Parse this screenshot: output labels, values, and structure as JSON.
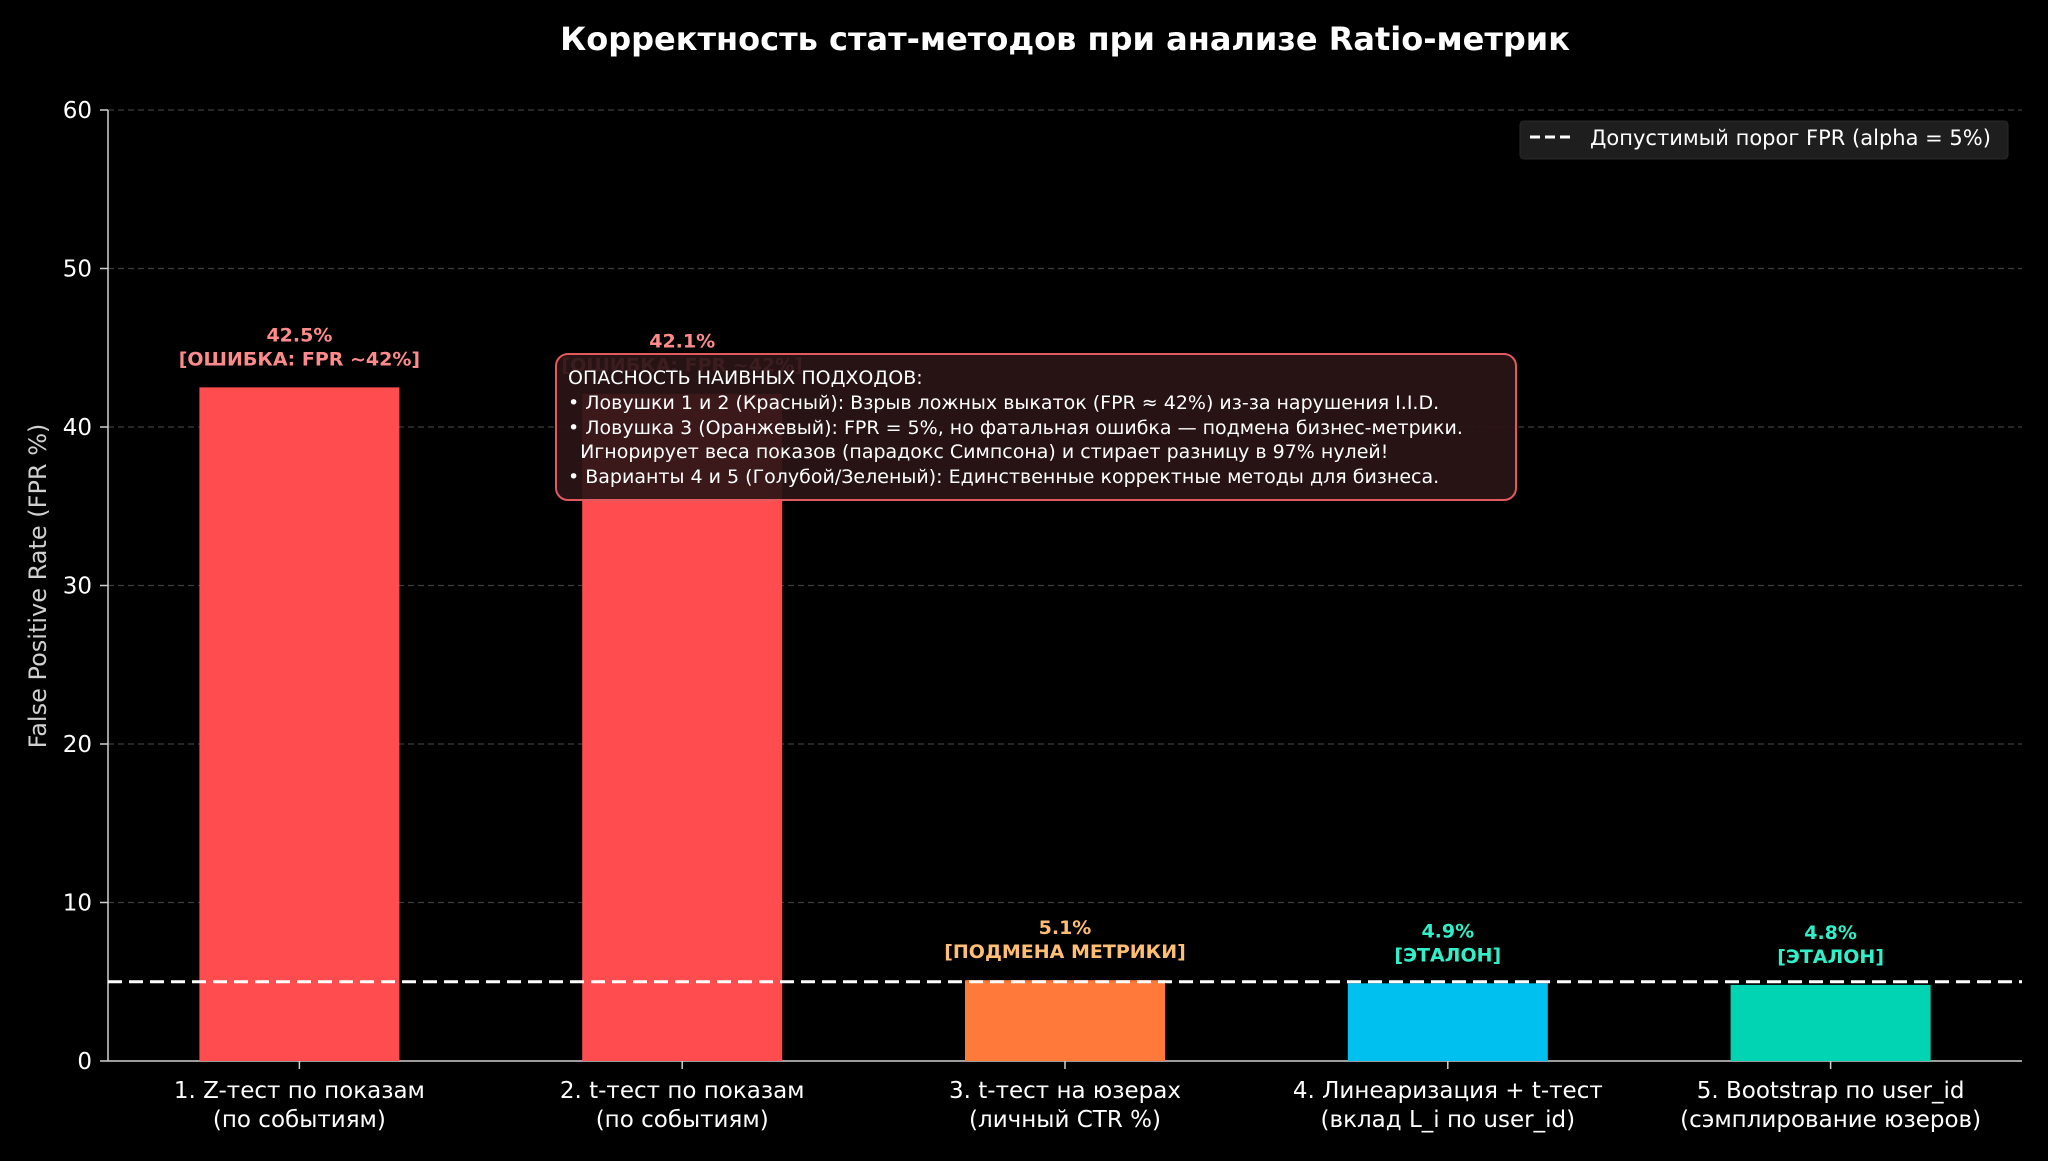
{
  "chart_data": {
    "type": "bar",
    "title": "Корректность стат-методов при анализе Ratio-метрик",
    "xlabel": "",
    "ylabel": "False Positive Rate (FPR %)",
    "ylim": [
      0,
      60
    ],
    "yticks": [
      "0",
      "10",
      "20",
      "30",
      "40",
      "50",
      "60"
    ],
    "grid": true,
    "legend_position": "top-right",
    "categories": [
      {
        "line1": "1. Z-тест по показам",
        "line2": "(по событиям)"
      },
      {
        "line1": "2. t-тест по показам",
        "line2": "(по событиям)"
      },
      {
        "line1": "3. t-тест на юзерах",
        "line2": "(личный CTR %)"
      },
      {
        "line1": "4. Линеаризация + t-тест",
        "line2": "(вклад L_i по user_id)"
      },
      {
        "line1": "5. Bootstrap по user_id",
        "line2": "(сэмплирование юзеров)"
      }
    ],
    "values": [
      42.5,
      42.1,
      5.1,
      4.9,
      4.8
    ],
    "bar_colors": [
      "#ff4c4f",
      "#ff4c4f",
      "#ff7a3a",
      "#00c0f0",
      "#00d4b2"
    ],
    "label_colors": [
      "#ff8a8c",
      "#ff8a8c",
      "#ffbf73",
      "#2ff0c8",
      "#2ff0c8"
    ],
    "bar_labels": [
      {
        "value": "42.5%",
        "note": "[ОШИБКА: FPR ~42%]"
      },
      {
        "value": "42.1%",
        "note": "[ОШИБКА: FPR ~42%]"
      },
      {
        "value": "5.1%",
        "note": "[ПОДМЕНА МЕТРИКИ]"
      },
      {
        "value": "4.9%",
        "note": "[ЭТАЛОН]"
      },
      {
        "value": "4.8%",
        "note": "[ЭТАЛОН]"
      }
    ],
    "threshold": {
      "value": 5,
      "label": "Допустимый порог FPR (alpha = 5%)",
      "color": "#ffffff"
    },
    "annotation": {
      "lines": [
        "ОПАСНОСТЬ НАИВНЫХ ПОДХОДОВ:",
        "• Ловушки 1 и 2 (Красный): Взрыв ложных выкаток (FPR ≈ 42%) из-за нарушения I.I.D.",
        "• Ловушка 3 (Оранжевый): FPR = 5%, но фатальная ошибка — подмена бизнес-метрики.",
        "  Игнорирует веса показов (парадокс Симпсона) и стирает разницу в 97% нулей!",
        "• Варианты 4 и 5 (Голубой/Зеленый): Единственные корректные методы для бизнеса."
      ],
      "border_color": "#e05a5e",
      "fill_color": "#2a1416"
    }
  }
}
